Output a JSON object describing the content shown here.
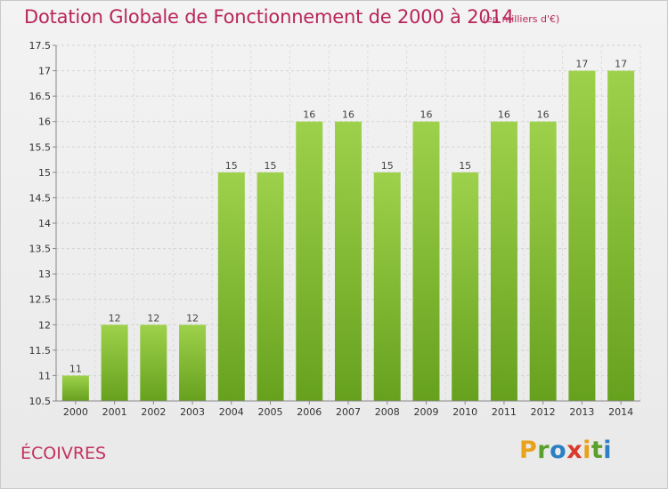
{
  "header": {
    "title": "Dotation Globale de Fonctionnement de 2000 à 2014",
    "unit": "(en milliers d'€)"
  },
  "footer": {
    "commune": "ÉCOIVRES",
    "logo_letters": [
      "P",
      "r",
      "o",
      "x",
      "i",
      "t",
      "i"
    ],
    "logo_colors": [
      "#e8a21b",
      "#5aa02c",
      "#2b7fc2",
      "#d93a2b",
      "#e8a21b",
      "#5aa02c",
      "#2b7fc2"
    ]
  },
  "chart_data": {
    "type": "bar",
    "title": "Dotation Globale de Fonctionnement de 2000 à 2014",
    "xlabel": "",
    "ylabel": "(en milliers d'€)",
    "categories": [
      "2000",
      "2001",
      "2002",
      "2003",
      "2004",
      "2005",
      "2006",
      "2007",
      "2008",
      "2009",
      "2010",
      "2011",
      "2012",
      "2013",
      "2014"
    ],
    "values": [
      11,
      12,
      12,
      12,
      15,
      15,
      16,
      16,
      15,
      16,
      15,
      16,
      16,
      17,
      17
    ],
    "ylim": [
      10.5,
      17.5
    ],
    "yticks": [
      "10.5",
      "11",
      "11.5",
      "12",
      "12.5",
      "13",
      "13.5",
      "14",
      "14.5",
      "15",
      "15.5",
      "16",
      "16.5",
      "17",
      "17.5"
    ],
    "grid": true,
    "bar_color_top": "#9ed14b",
    "bar_color_bottom": "#66a11e"
  }
}
